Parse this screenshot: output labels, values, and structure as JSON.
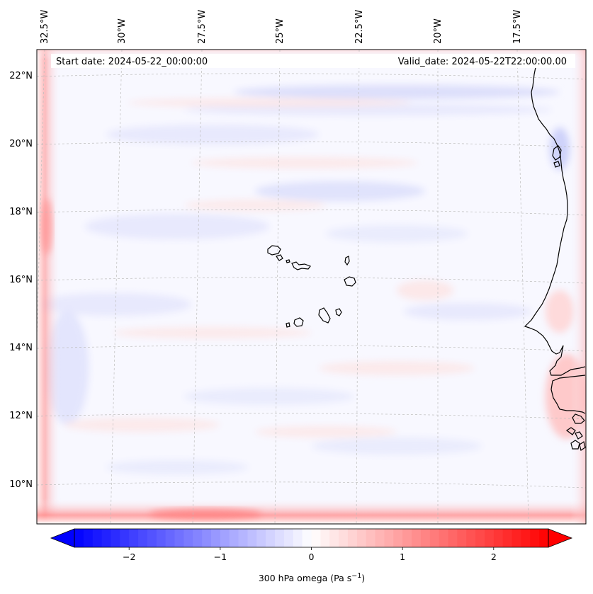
{
  "header": {
    "start_date": "Start date: 2024-05-22_00:00:00",
    "valid_date": "Valid_date: 2024-05-22T22:00:00.00"
  },
  "map": {
    "longitude_labels": [
      "32.5°W",
      "30°W",
      "27.5°W",
      "25°W",
      "22.5°W",
      "20°W",
      "17.5°W"
    ],
    "latitude_labels": [
      "22°N",
      "20°N",
      "18°N",
      "16°N",
      "14°N",
      "12°N",
      "10°N"
    ],
    "gridlines": "on",
    "coastlines": "on"
  },
  "colorbar": {
    "min": -2.6,
    "max": 2.6,
    "ticks": [
      -2,
      -1,
      0,
      1,
      2
    ],
    "tick_labels": [
      "−2",
      "−1",
      "0",
      "1",
      "2"
    ],
    "label_main": "300 hPa omega (Pa s",
    "label_sup": "−1",
    "label_close": ")",
    "extend": "both",
    "low_color": "#0000ff",
    "mid_color": "#ffffff",
    "high_color": "#ff0000"
  },
  "colors": {
    "field_background": "#f8f8ff",
    "negative_tint": "#e4e6fd",
    "positive_tint": "#fde8e8",
    "edge_positive": "#ff8a8a",
    "coastline": "#000000",
    "gridline": "#bdbdbd"
  }
}
